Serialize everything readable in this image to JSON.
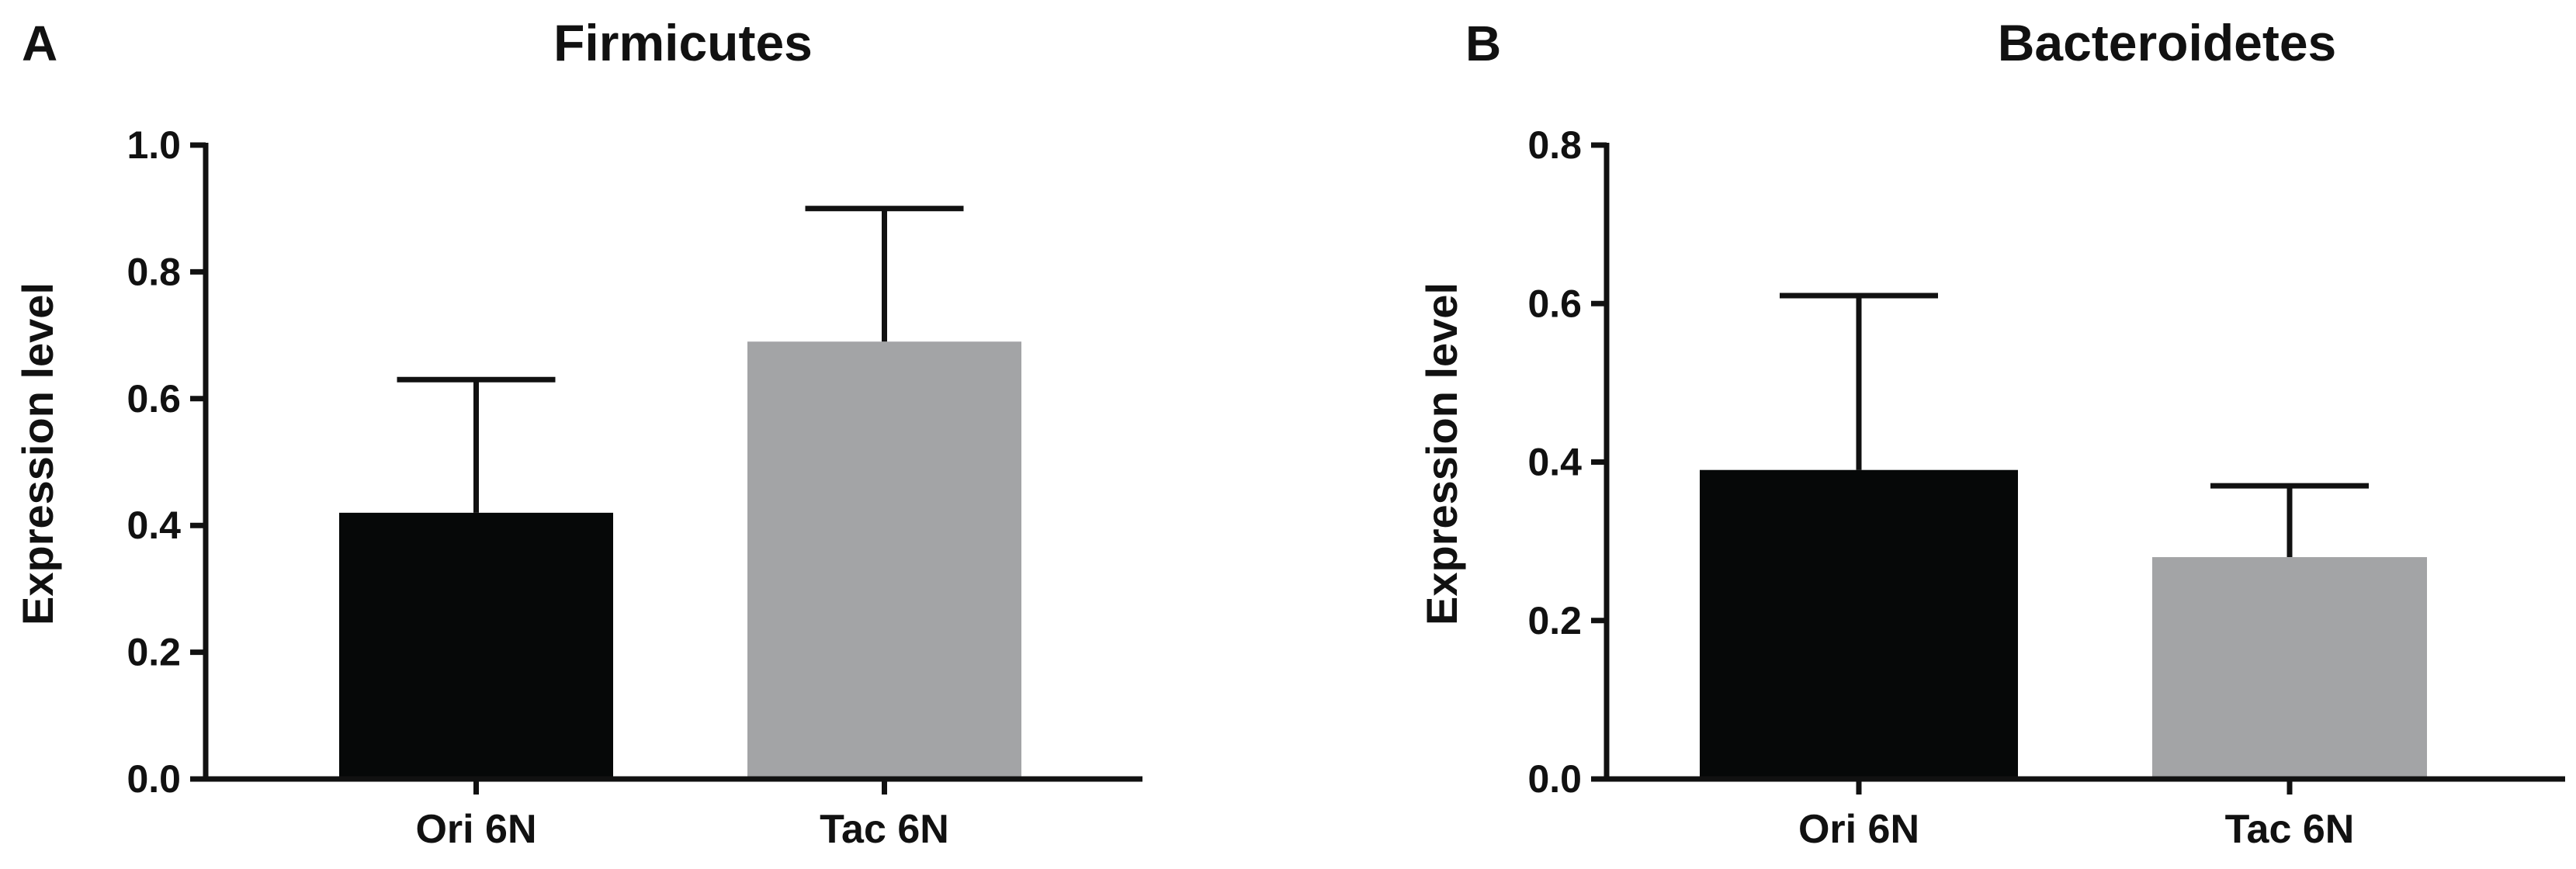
{
  "chart_data": [
    {
      "panel": "A",
      "type": "bar",
      "title": "Firmicutes",
      "xlabel": "",
      "ylabel": "Expression level",
      "ylim": [
        0,
        1.0
      ],
      "yticks": [
        "0.0",
        "0.2",
        "0.4",
        "0.6",
        "0.8",
        "1.0"
      ],
      "categories": [
        "Ori 6N",
        "Tac 6N"
      ],
      "values": [
        0.42,
        0.69
      ],
      "error_upper": [
        0.63,
        0.9
      ],
      "colors": [
        "#060808",
        "#a3a4a6"
      ],
      "grid": false
    },
    {
      "panel": "B",
      "type": "bar",
      "title": "Bacteroidetes",
      "xlabel": "",
      "ylabel": "Expression level",
      "ylim": [
        0,
        0.8
      ],
      "yticks": [
        "0.0",
        "0.2",
        "0.4",
        "0.6",
        "0.8"
      ],
      "categories": [
        "Ori 6N",
        "Tac 6N"
      ],
      "values": [
        0.39,
        0.28
      ],
      "error_upper": [
        0.61,
        0.37
      ],
      "colors": [
        "#060808",
        "#a3a4a6"
      ],
      "grid": false
    }
  ]
}
